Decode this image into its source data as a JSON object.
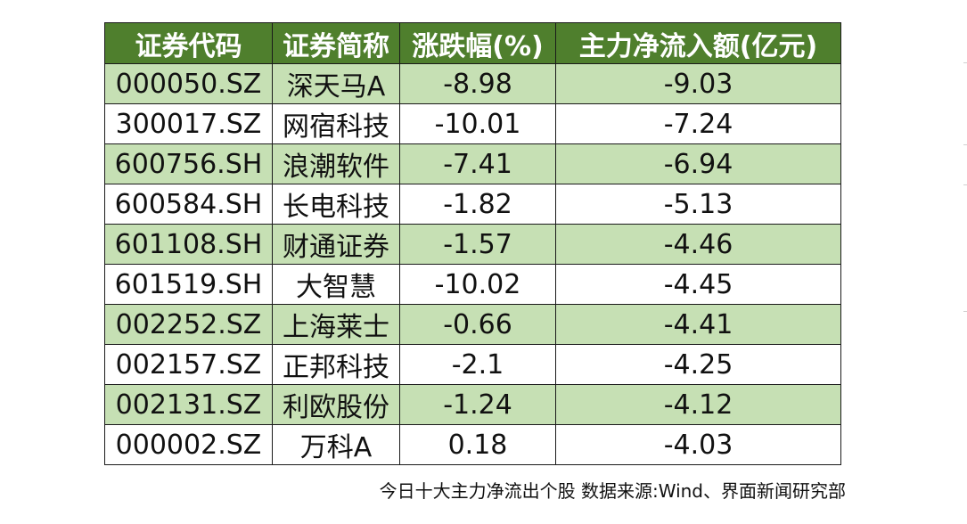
{
  "table": {
    "headers": [
      "证券代码",
      "证券简称",
      "涨跌幅(%)",
      "主力净流入额(亿元)"
    ],
    "rows": [
      [
        "000050.SZ",
        "深天马A",
        "-8.98",
        "-9.03"
      ],
      [
        "300017.SZ",
        "网宿科技",
        "-10.01",
        "-7.24"
      ],
      [
        "600756.SH",
        "浪潮软件",
        "-7.41",
        "-6.94"
      ],
      [
        "600584.SH",
        "长电科技",
        "-1.82",
        "-5.13"
      ],
      [
        "601108.SH",
        "财通证券",
        "-1.57",
        "-4.46"
      ],
      [
        "601519.SH",
        "大智慧",
        "-10.02",
        "-4.45"
      ],
      [
        "002252.SZ",
        "上海莱士",
        "-0.66",
        "-4.41"
      ],
      [
        "002157.SZ",
        "正邦科技",
        "-2.1",
        "-4.25"
      ],
      [
        "002131.SZ",
        "利欧股份",
        "-1.24",
        "-4.12"
      ],
      [
        "000002.SZ",
        "万科A",
        "0.18",
        "-4.03"
      ]
    ]
  },
  "caption": "今日十大主力净流出个股 数据来源:Wind、界面新闻研究部",
  "colors": {
    "header_bg": "#4f7f2d",
    "header_text": "#ffffff",
    "alt_row_bg": "#c6e0b4",
    "plain_row_bg": "#ffffff",
    "border": "#1a1a1a"
  }
}
